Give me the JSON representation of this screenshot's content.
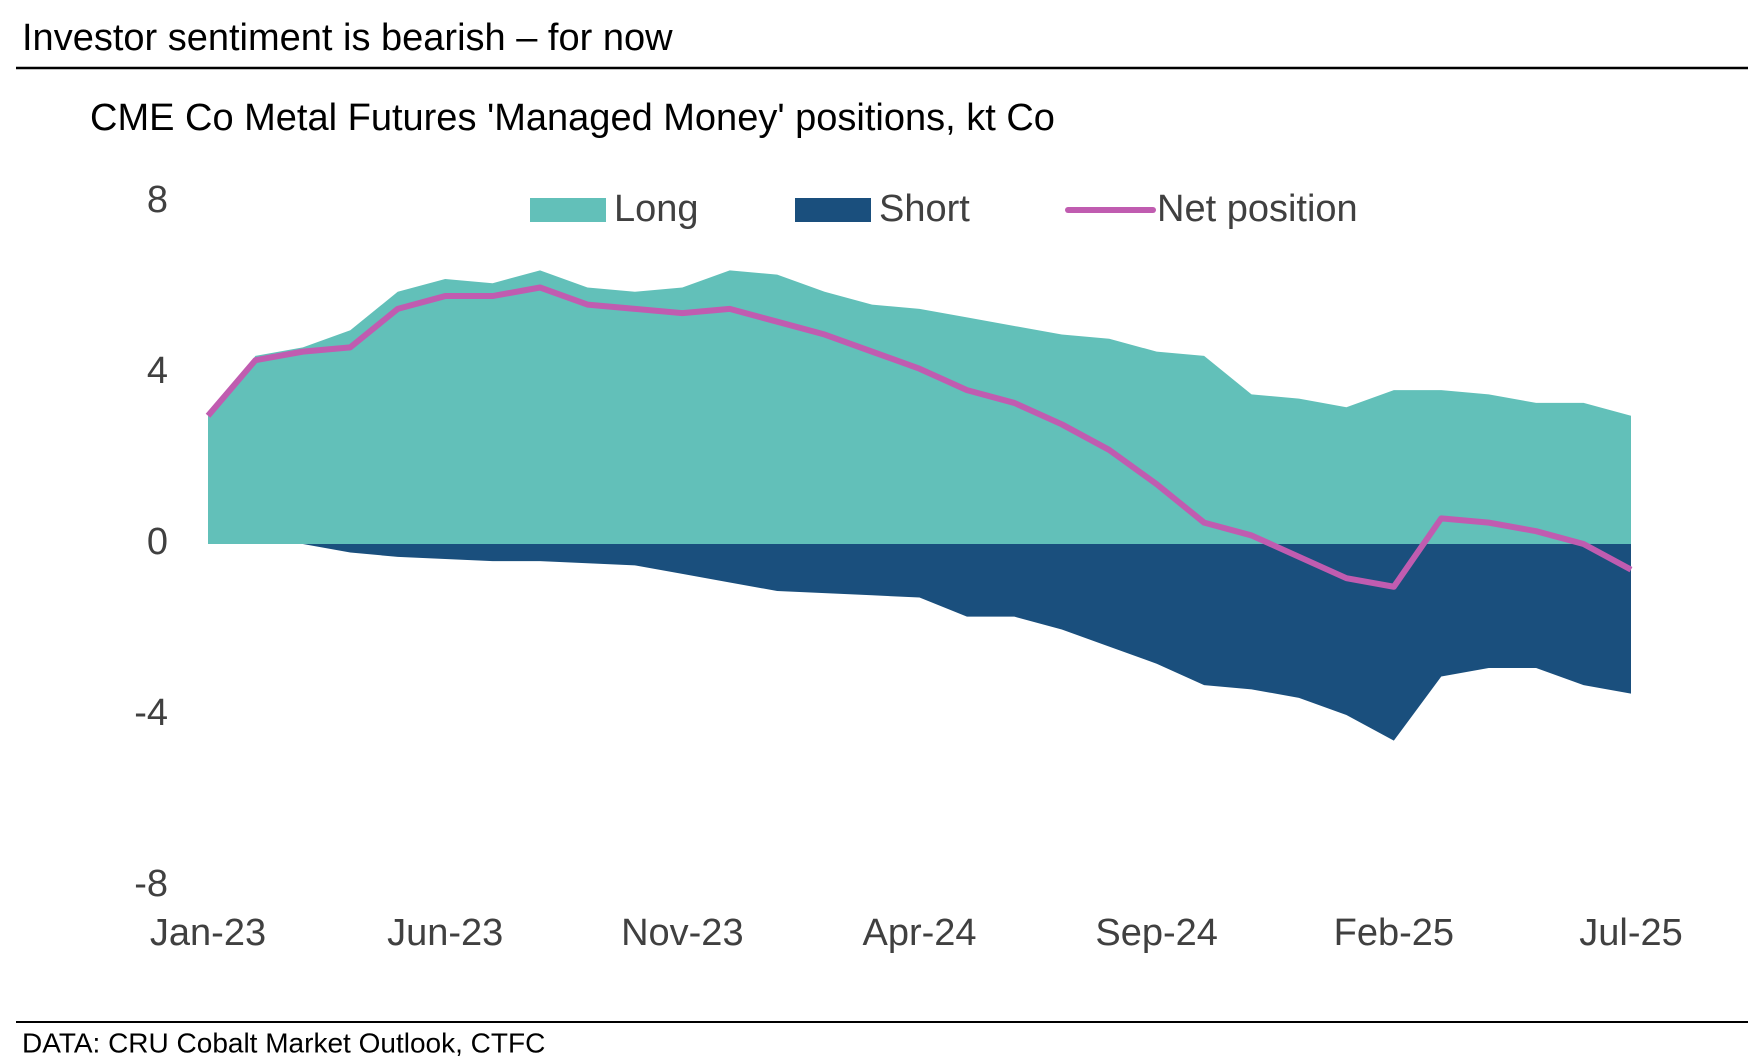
{
  "header": {
    "title": "Investor sentiment is bearish – for now"
  },
  "chart_data": {
    "type": "area-line",
    "title": "CME Co Metal Futures 'Managed Money' positions, kt Co",
    "categories": [
      "Jan-23",
      null,
      null,
      null,
      null,
      "Jun-23",
      null,
      null,
      null,
      null,
      "Nov-23",
      null,
      null,
      null,
      null,
      "Apr-24",
      null,
      null,
      null,
      null,
      "Sep-24",
      null,
      null,
      null,
      null,
      "Feb-25",
      null,
      null,
      null,
      null,
      "Jul-25"
    ],
    "series": [
      {
        "name": "Long",
        "color": "#62c0b9",
        "kind": "area",
        "values": [
          3.0,
          4.4,
          4.6,
          5.0,
          5.9,
          6.2,
          6.1,
          6.4,
          6.0,
          5.9,
          6.0,
          6.4,
          6.3,
          5.9,
          5.6,
          5.5,
          5.3,
          5.1,
          4.9,
          4.8,
          4.5,
          4.4,
          3.5,
          3.4,
          3.2,
          3.6,
          3.6,
          3.5,
          3.3,
          3.3,
          3.0
        ]
      },
      {
        "name": "Short",
        "color": "#1a4f7d",
        "kind": "area",
        "values": [
          0,
          0,
          0,
          -0.2,
          -0.3,
          -0.35,
          -0.4,
          -0.4,
          -0.45,
          -0.5,
          -0.7,
          -0.9,
          -1.1,
          -1.15,
          -1.2,
          -1.25,
          -1.7,
          -1.7,
          -2.0,
          -2.4,
          -2.8,
          -3.3,
          -3.4,
          -3.6,
          -4.0,
          -4.6,
          -3.1,
          -2.9,
          -2.9,
          -3.3,
          -3.5
        ]
      },
      {
        "name": "Net position",
        "color": "#c05cb0",
        "kind": "line",
        "values": [
          3.0,
          4.3,
          4.5,
          4.6,
          5.5,
          5.8,
          5.8,
          6.0,
          5.6,
          5.5,
          5.4,
          5.5,
          5.2,
          4.9,
          4.5,
          4.1,
          3.6,
          3.3,
          2.8,
          2.2,
          1.4,
          0.5,
          0.2,
          -0.3,
          -0.8,
          -1.0,
          0.6,
          0.5,
          0.3,
          0.0,
          -0.6
        ]
      }
    ],
    "ylim": [
      -8,
      8
    ],
    "yticks": [
      -8,
      -4,
      0,
      4,
      8
    ],
    "grid": false
  },
  "footer": {
    "source": "DATA: CRU Cobalt Market Outlook, CTFC"
  }
}
